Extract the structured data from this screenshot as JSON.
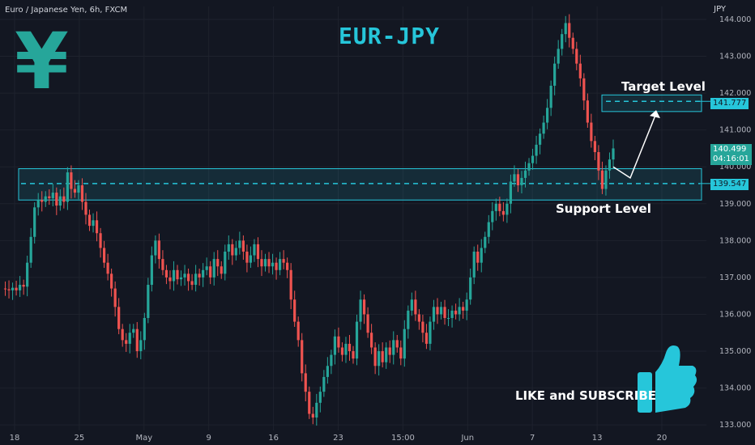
{
  "header": {
    "symbol": "Euro / Japanese Yen, 6h, FXCM",
    "currency": "JPY"
  },
  "overlay": {
    "title": "EUR-JPY",
    "yen_symbol": "¥",
    "target_label": "Target Level",
    "support_label": "Support Level",
    "cta_label": "LIKE and SUBSCRIBE",
    "thumbs_icon": "thumbs-up-icon"
  },
  "colors": {
    "up": "#26a69a",
    "down": "#ef5350",
    "zone": "#26c6da",
    "background": "#131722"
  },
  "price_badges": {
    "current_price": "140.499",
    "countdown": "04:16:01",
    "target_price": "141.777",
    "support_price": "139.547"
  },
  "chart_data": {
    "type": "candlestick",
    "x_ticks": [
      "18",
      "25",
      "May",
      "9",
      "16",
      "23",
      "15:00",
      "Jun",
      "7",
      "13",
      "20"
    ],
    "y_ticks": [
      "133.000",
      "134.000",
      "135.000",
      "136.000",
      "137.000",
      "138.000",
      "139.000",
      "140.000",
      "141.000",
      "142.000",
      "143.000",
      "144.000"
    ],
    "ylim": [
      132.85,
      144.35
    ],
    "levels": {
      "target": 141.777,
      "support": 139.547,
      "support_zone": [
        139.1,
        139.95
      ],
      "target_zone": [
        141.5,
        141.95
      ]
    },
    "projection": [
      140.0,
      139.7,
      141.45
    ],
    "close": [
      136.7,
      136.68,
      136.65,
      136.72,
      136.65,
      136.8,
      136.75,
      137.4,
      138.1,
      138.9,
      139.1,
      139.05,
      139.2,
      139.15,
      139.3,
      138.95,
      139.2,
      139.05,
      139.85,
      139.4,
      139.3,
      139.5,
      139.05,
      138.7,
      138.4,
      138.55,
      138.2,
      137.8,
      137.4,
      137.1,
      136.7,
      136.2,
      135.6,
      135.3,
      135.2,
      135.5,
      135.6,
      135.0,
      135.3,
      135.9,
      136.8,
      137.6,
      138.0,
      137.5,
      137.2,
      137.0,
      136.9,
      137.2,
      136.95,
      137.0,
      137.1,
      136.9,
      136.8,
      137.1,
      137.0,
      137.2,
      137.3,
      137.0,
      137.5,
      137.3,
      137.1,
      137.7,
      137.9,
      137.6,
      137.8,
      138.0,
      137.7,
      137.4,
      137.6,
      137.9,
      137.5,
      137.3,
      137.5,
      137.3,
      137.4,
      137.2,
      137.5,
      137.4,
      137.2,
      136.4,
      135.8,
      135.3,
      134.4,
      133.9,
      133.3,
      133.2,
      133.6,
      133.9,
      134.3,
      134.6,
      134.9,
      135.4,
      135.1,
      134.9,
      135.2,
      135.0,
      134.8,
      135.8,
      136.4,
      136.0,
      135.5,
      135.1,
      134.6,
      135.0,
      134.7,
      135.1,
      134.9,
      135.3,
      135.1,
      134.8,
      135.6,
      136.1,
      136.4,
      136.0,
      135.8,
      135.5,
      135.2,
      135.8,
      136.2,
      136.0,
      136.2,
      135.9,
      135.9,
      136.1,
      136.0,
      136.2,
      136.1,
      136.4,
      137.0,
      137.7,
      137.4,
      137.8,
      138.1,
      138.5,
      138.8,
      139.0,
      138.8,
      138.7,
      139.0,
      139.6,
      139.8,
      139.5,
      139.7,
      139.9,
      140.1,
      140.3,
      140.6,
      140.9,
      141.2,
      141.6,
      142.2,
      142.8,
      143.2,
      143.6,
      143.9,
      143.5,
      143.2,
      142.8,
      142.4,
      141.8,
      141.2,
      140.7,
      140.4,
      139.9,
      139.4,
      139.9,
      140.2,
      140.5
    ]
  }
}
